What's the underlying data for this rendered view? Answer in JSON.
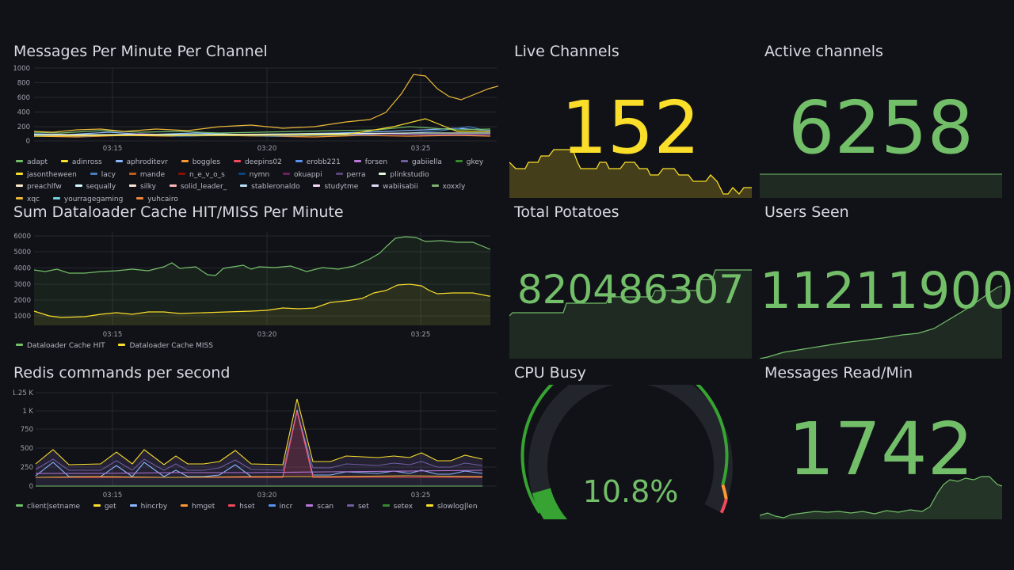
{
  "panels": {
    "messages": {
      "title": "Messages Per Minute Per Channel",
      "y_ticks": [
        "1000",
        "800",
        "600",
        "400",
        "200",
        "0"
      ],
      "x_ticks": [
        "03:15",
        "03:20",
        "03:25"
      ],
      "legend": [
        {
          "name": "adapt",
          "color": "#73bf69"
        },
        {
          "name": "adinross",
          "color": "#fade2a"
        },
        {
          "name": "aphroditevr",
          "color": "#8ab8ff"
        },
        {
          "name": "boggles",
          "color": "#ff9830"
        },
        {
          "name": "deepins02",
          "color": "#f2495c"
        },
        {
          "name": "erobb221",
          "color": "#5794f2"
        },
        {
          "name": "forsen",
          "color": "#b877d9"
        },
        {
          "name": "gabiiella",
          "color": "#705da0"
        },
        {
          "name": "gkey",
          "color": "#37872d"
        },
        {
          "name": "jasontheween",
          "color": "#fade2a"
        },
        {
          "name": "lacy",
          "color": "#447ebc"
        },
        {
          "name": "mande",
          "color": "#c15c17"
        },
        {
          "name": "n_e_v_o_s",
          "color": "#890f02"
        },
        {
          "name": "nymn",
          "color": "#0a437c"
        },
        {
          "name": "okuappi",
          "color": "#6d1f62"
        },
        {
          "name": "perra",
          "color": "#584477"
        },
        {
          "name": "plinkstudio",
          "color": "#e0f9d7"
        },
        {
          "name": "preachlfw",
          "color": "#fceaca"
        },
        {
          "name": "sequally",
          "color": "#cffaff"
        },
        {
          "name": "silky",
          "color": "#f9e2d2"
        },
        {
          "name": "solid_leader_",
          "color": "#fcb6b6"
        },
        {
          "name": "stableronaldo",
          "color": "#badff4"
        },
        {
          "name": "studytme",
          "color": "#f9d9f9"
        },
        {
          "name": "wabiisabii",
          "color": "#dedaf7"
        },
        {
          "name": "xoxxly",
          "color": "#7eb26d"
        },
        {
          "name": "xqc",
          "color": "#eab839"
        },
        {
          "name": "yourragegaming",
          "color": "#6ed0e0"
        },
        {
          "name": "yuhcairo",
          "color": "#ef843c"
        }
      ]
    },
    "cache": {
      "title": "Sum Dataloader Cache HIT/MISS Per Minute",
      "y_ticks": [
        "6000",
        "5000",
        "4000",
        "3000",
        "2000",
        "1000"
      ],
      "x_ticks": [
        "03:15",
        "03:20",
        "03:25"
      ],
      "legend": [
        {
          "name": "Dataloader Cache HIT",
          "color": "#73bf69"
        },
        {
          "name": "Dataloader Cache MISS",
          "color": "#fade2a"
        }
      ]
    },
    "redis": {
      "title": "Redis commands per second",
      "y_ticks": [
        "1.25 K",
        "1 K",
        "750",
        "500",
        "250",
        "0"
      ],
      "x_ticks": [
        "03:15",
        "03:20",
        "03:25"
      ],
      "legend": [
        {
          "name": "client|setname",
          "color": "#73bf69"
        },
        {
          "name": "get",
          "color": "#fade2a"
        },
        {
          "name": "hincrby",
          "color": "#8ab8ff"
        },
        {
          "name": "hmget",
          "color": "#ff9830"
        },
        {
          "name": "hset",
          "color": "#f2495c"
        },
        {
          "name": "incr",
          "color": "#5794f2"
        },
        {
          "name": "scan",
          "color": "#b877d9"
        },
        {
          "name": "set",
          "color": "#705da0"
        },
        {
          "name": "setex",
          "color": "#37872d"
        },
        {
          "name": "slowlog|len",
          "color": "#fade2a"
        }
      ]
    },
    "live_channels": {
      "title": "Live Channels",
      "value": "152",
      "color": "#fade2a"
    },
    "active_channels": {
      "title": "Active channels",
      "value": "6258",
      "color": "#73bf69"
    },
    "total_potatoes": {
      "title": "Total Potatoes",
      "value": "820486307",
      "color": "#73bf69"
    },
    "users_seen": {
      "title": "Users Seen",
      "value": "11211900",
      "color": "#73bf69"
    },
    "cpu_busy": {
      "title": "CPU Busy",
      "value": "10.8%",
      "percent": 10.8,
      "color": "#73bf69",
      "track": "#22252b",
      "threshold_colors": [
        "#37a332",
        "#ff9830",
        "#f2495c"
      ]
    },
    "messages_read": {
      "title": "Messages Read/Min",
      "value": "1742",
      "color": "#73bf69"
    }
  }
}
